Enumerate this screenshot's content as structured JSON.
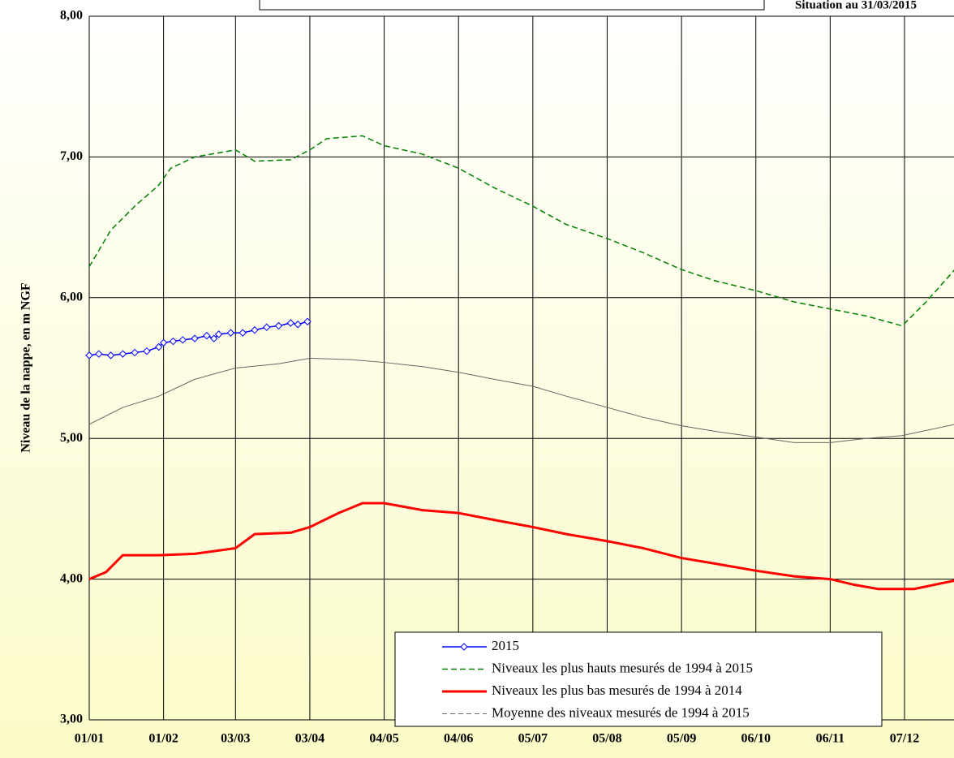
{
  "chart_data": {
    "type": "line",
    "subtitle": "Situation au 31/03/2015",
    "ylabel": "Niveau de la nappe, en m NGF",
    "xlim": [
      1,
      362
    ],
    "xticks": [
      {
        "value": 1,
        "label": "01/01"
      },
      {
        "value": 32,
        "label": "01/02"
      },
      {
        "value": 62,
        "label": "03/03"
      },
      {
        "value": 93,
        "label": "03/04"
      },
      {
        "value": 124,
        "label": "04/05"
      },
      {
        "value": 155,
        "label": "04/06"
      },
      {
        "value": 186,
        "label": "05/07"
      },
      {
        "value": 217,
        "label": "05/08"
      },
      {
        "value": 248,
        "label": "05/09"
      },
      {
        "value": 279,
        "label": "06/10"
      },
      {
        "value": 310,
        "label": "06/11"
      },
      {
        "value": 341,
        "label": "07/12"
      }
    ],
    "ylim": [
      3,
      8
    ],
    "yticks": [
      {
        "value": 3,
        "label": "3,00"
      },
      {
        "value": 4,
        "label": "4,00"
      },
      {
        "value": 5,
        "label": "5,00"
      },
      {
        "value": 6,
        "label": "6,00"
      },
      {
        "value": 7,
        "label": "7,00"
      },
      {
        "value": 8,
        "label": "8,00"
      }
    ],
    "grid": true,
    "series": [
      {
        "name": "2015",
        "color": "#0000ff",
        "line": "solid",
        "marker": "diamond",
        "x": [
          1,
          5,
          10,
          15,
          20,
          25,
          30,
          32,
          36,
          40,
          45,
          50,
          53,
          55,
          60,
          65,
          70,
          75,
          80,
          85,
          88,
          92
        ],
        "values": [
          5.59,
          5.6,
          5.59,
          5.6,
          5.61,
          5.62,
          5.65,
          5.68,
          5.69,
          5.7,
          5.71,
          5.73,
          5.71,
          5.74,
          5.75,
          5.75,
          5.77,
          5.79,
          5.8,
          5.82,
          5.81,
          5.83
        ]
      },
      {
        "name": "Niveaux les plus hauts mesurés de 1994 à 2015",
        "color": "#008000",
        "line": "dashed",
        "x": [
          1,
          10,
          20,
          30,
          35,
          45,
          62,
          70,
          85,
          93,
          100,
          115,
          124,
          140,
          155,
          170,
          186,
          200,
          217,
          232,
          248,
          262,
          279,
          295,
          310,
          325,
          340,
          350,
          362
        ],
        "values": [
          6.22,
          6.48,
          6.65,
          6.8,
          6.92,
          7.0,
          7.05,
          6.97,
          6.98,
          7.05,
          7.13,
          7.15,
          7.08,
          7.02,
          6.92,
          6.78,
          6.65,
          6.52,
          6.42,
          6.32,
          6.2,
          6.12,
          6.05,
          5.97,
          5.92,
          5.87,
          5.8,
          5.97,
          6.2
        ]
      },
      {
        "name": "Niveaux les plus bas mesurés de 1994 à 2014",
        "color": "#ff0000",
        "line": "thick",
        "x": [
          1,
          8,
          15,
          30,
          45,
          62,
          70,
          85,
          93,
          105,
          115,
          124,
          140,
          155,
          170,
          186,
          200,
          217,
          232,
          248,
          262,
          279,
          295,
          310,
          320,
          330,
          345,
          362
        ],
        "values": [
          4.0,
          4.05,
          4.17,
          4.17,
          4.18,
          4.22,
          4.32,
          4.33,
          4.37,
          4.47,
          4.54,
          4.54,
          4.49,
          4.47,
          4.42,
          4.37,
          4.32,
          4.27,
          4.22,
          4.15,
          4.11,
          4.06,
          4.02,
          4.0,
          3.96,
          3.93,
          3.93,
          3.99
        ]
      },
      {
        "name": "Moyenne des niveaux mesurés de 1994 à 2015",
        "color": "#666666",
        "line": "thin",
        "x": [
          1,
          15,
          30,
          45,
          62,
          80,
          93,
          110,
          124,
          140,
          155,
          170,
          186,
          200,
          217,
          232,
          248,
          262,
          279,
          295,
          310,
          325,
          340,
          362
        ],
        "values": [
          5.1,
          5.22,
          5.3,
          5.42,
          5.5,
          5.53,
          5.57,
          5.56,
          5.54,
          5.51,
          5.47,
          5.42,
          5.37,
          5.3,
          5.22,
          5.15,
          5.09,
          5.05,
          5.01,
          4.97,
          4.97,
          5.0,
          5.02,
          5.1
        ]
      }
    ]
  }
}
